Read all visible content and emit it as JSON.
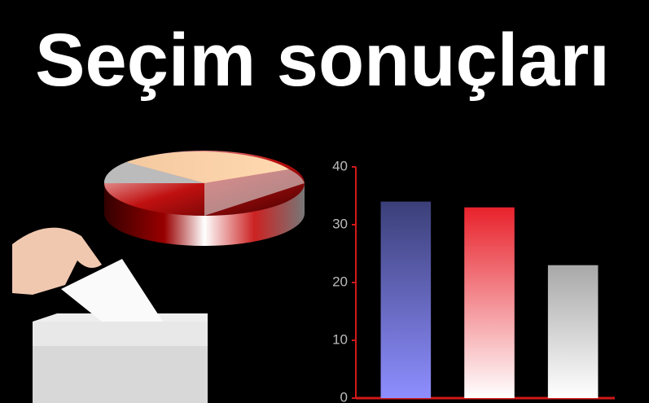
{
  "chart_data": {
    "type": "bar",
    "title": "Seçim sonuçları",
    "categories": [
      null,
      null,
      null
    ],
    "values": [
      34,
      33,
      23
    ],
    "colors": [
      "#3b3f78",
      "#e8222c",
      "#a8a8a8"
    ],
    "ylim": [
      0,
      40
    ],
    "yticks": [
      0,
      10,
      20,
      30,
      40
    ],
    "axis_color": "#d01818"
  }
}
